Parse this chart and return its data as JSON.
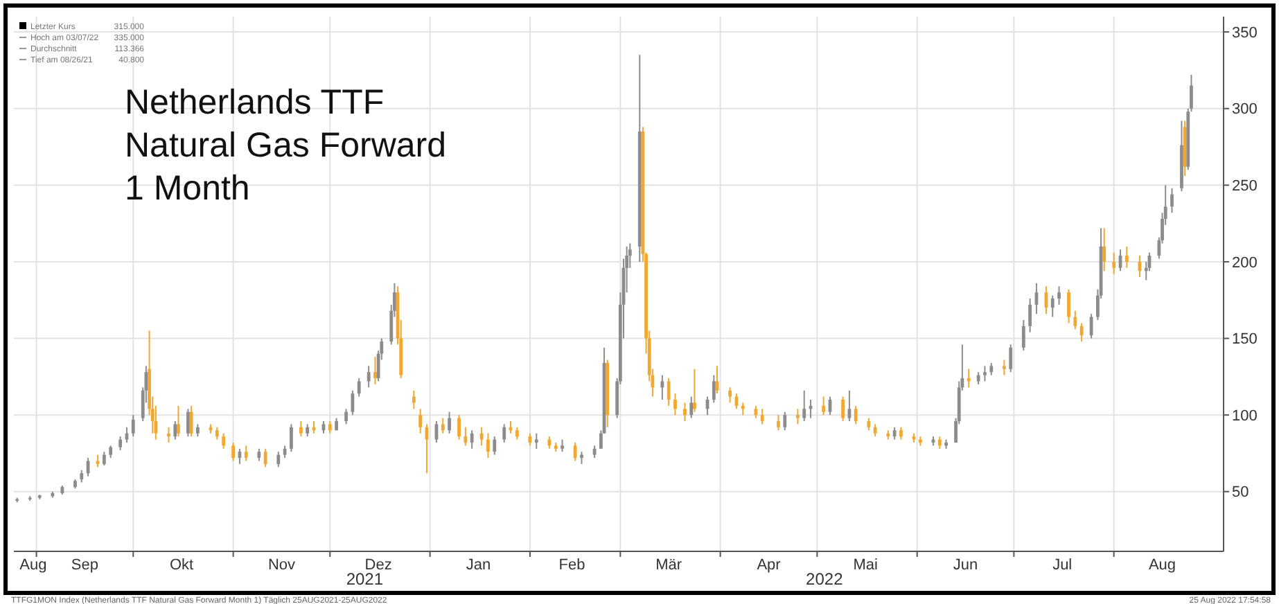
{
  "chart_data": {
    "type": "candlestick",
    "title": "Netherlands TTF\nNatural Gas Forward\n1 Month",
    "x": [
      "2021-08-26",
      "2021-08-30",
      "2021-09-02",
      "2021-09-06",
      "2021-09-09",
      "2021-09-13",
      "2021-09-15",
      "2021-09-17",
      "2021-09-20",
      "2021-09-22",
      "2021-09-24",
      "2021-09-27",
      "2021-09-29",
      "2021-10-01",
      "2021-10-04",
      "2021-10-05",
      "2021-10-06",
      "2021-10-07",
      "2021-10-08",
      "2021-10-12",
      "2021-10-14",
      "2021-10-15",
      "2021-10-18",
      "2021-10-19",
      "2021-10-21",
      "2021-10-25",
      "2021-10-27",
      "2021-10-29",
      "2021-11-01",
      "2021-11-03",
      "2021-11-05",
      "2021-11-09",
      "2021-11-11",
      "2021-11-15",
      "2021-11-17",
      "2021-11-19",
      "2021-11-22",
      "2021-11-24",
      "2021-11-26",
      "2021-11-29",
      "2021-12-01",
      "2021-12-03",
      "2021-12-06",
      "2021-12-08",
      "2021-12-10",
      "2021-12-13",
      "2021-12-15",
      "2021-12-16",
      "2021-12-17",
      "2021-12-20",
      "2021-12-21",
      "2021-12-22",
      "2021-12-23",
      "2021-12-27",
      "2021-12-29",
      "2021-12-31",
      "2022-01-03",
      "2022-01-05",
      "2022-01-07",
      "2022-01-10",
      "2022-01-12",
      "2022-01-14",
      "2022-01-17",
      "2022-01-19",
      "2022-01-21",
      "2022-01-24",
      "2022-01-26",
      "2022-01-28",
      "2022-02-01",
      "2022-02-03",
      "2022-02-07",
      "2022-02-09",
      "2022-02-11",
      "2022-02-15",
      "2022-02-17",
      "2022-02-21",
      "2022-02-23",
      "2022-02-24",
      "2022-02-25",
      "2022-02-28",
      "2022-03-01",
      "2022-03-02",
      "2022-03-03",
      "2022-03-04",
      "2022-03-07",
      "2022-03-08",
      "2022-03-09",
      "2022-03-10",
      "2022-03-11",
      "2022-03-14",
      "2022-03-16",
      "2022-03-18",
      "2022-03-21",
      "2022-03-23",
      "2022-03-24",
      "2022-03-28",
      "2022-03-30",
      "2022-03-31",
      "2022-04-04",
      "2022-04-06",
      "2022-04-08",
      "2022-04-12",
      "2022-04-14",
      "2022-04-19",
      "2022-04-21",
      "2022-04-25",
      "2022-04-27",
      "2022-04-29",
      "2022-05-03",
      "2022-05-05",
      "2022-05-09",
      "2022-05-11",
      "2022-05-13",
      "2022-05-17",
      "2022-05-19",
      "2022-05-23",
      "2022-05-25",
      "2022-05-27",
      "2022-05-31",
      "2022-06-02",
      "2022-06-06",
      "2022-06-08",
      "2022-06-10",
      "2022-06-13",
      "2022-06-14",
      "2022-06-15",
      "2022-06-17",
      "2022-06-20",
      "2022-06-22",
      "2022-06-24",
      "2022-06-28",
      "2022-06-30",
      "2022-07-04",
      "2022-07-06",
      "2022-07-08",
      "2022-07-11",
      "2022-07-13",
      "2022-07-15",
      "2022-07-18",
      "2022-07-20",
      "2022-07-22",
      "2022-07-25",
      "2022-07-27",
      "2022-07-28",
      "2022-07-29",
      "2022-08-01",
      "2022-08-03",
      "2022-08-05",
      "2022-08-09",
      "2022-08-11",
      "2022-08-12",
      "2022-08-15",
      "2022-08-16",
      "2022-08-17",
      "2022-08-19",
      "2022-08-22",
      "2022-08-23",
      "2022-08-24",
      "2022-08-25"
    ],
    "ohlc": [
      [
        44,
        46,
        43,
        45
      ],
      [
        45,
        47,
        44,
        46
      ],
      [
        46,
        48,
        45,
        47.5
      ],
      [
        47,
        50,
        46,
        49
      ],
      [
        49,
        54,
        48,
        53
      ],
      [
        53,
        58,
        52,
        57
      ],
      [
        58,
        64,
        56,
        62
      ],
      [
        62,
        72,
        60,
        70
      ],
      [
        70,
        74,
        66,
        68
      ],
      [
        68,
        76,
        67,
        74
      ],
      [
        74,
        80,
        72,
        79
      ],
      [
        79,
        86,
        77,
        84
      ],
      [
        84,
        92,
        82,
        88
      ],
      [
        88,
        100,
        86,
        97
      ],
      [
        98,
        118,
        96,
        116
      ],
      [
        116,
        132,
        108,
        128
      ],
      [
        130,
        155,
        100,
        104
      ],
      [
        104,
        112,
        88,
        96
      ],
      [
        96,
        106,
        84,
        88
      ],
      [
        88,
        92,
        82,
        86
      ],
      [
        86,
        96,
        84,
        94
      ],
      [
        94,
        106,
        86,
        88
      ],
      [
        88,
        104,
        86,
        102
      ],
      [
        102,
        106,
        86,
        88
      ],
      [
        88,
        94,
        86,
        92
      ],
      [
        92,
        94,
        88,
        90
      ],
      [
        90,
        92,
        84,
        86
      ],
      [
        86,
        88,
        78,
        80
      ],
      [
        80,
        82,
        70,
        72
      ],
      [
        72,
        78,
        68,
        76
      ],
      [
        76,
        80,
        70,
        72
      ],
      [
        72,
        78,
        70,
        76
      ],
      [
        76,
        78,
        66,
        68
      ],
      [
        68,
        76,
        66,
        74
      ],
      [
        74,
        80,
        72,
        78
      ],
      [
        78,
        94,
        76,
        92
      ],
      [
        92,
        96,
        86,
        88
      ],
      [
        88,
        94,
        86,
        92
      ],
      [
        92,
        96,
        88,
        90
      ],
      [
        90,
        96,
        88,
        94
      ],
      [
        94,
        96,
        88,
        90
      ],
      [
        90,
        98,
        90,
        96
      ],
      [
        96,
        104,
        94,
        102
      ],
      [
        102,
        116,
        100,
        114
      ],
      [
        114,
        124,
        112,
        122
      ],
      [
        122,
        132,
        118,
        128
      ],
      [
        128,
        138,
        120,
        124
      ],
      [
        124,
        142,
        122,
        140
      ],
      [
        140,
        150,
        136,
        148
      ],
      [
        148,
        172,
        146,
        168
      ],
      [
        168,
        186,
        164,
        180
      ],
      [
        180,
        184,
        146,
        150
      ],
      [
        150,
        162,
        124,
        126
      ],
      [
        112,
        116,
        104,
        108
      ],
      [
        100,
        104,
        88,
        92
      ],
      [
        92,
        94,
        62,
        84
      ],
      [
        84,
        96,
        82,
        94
      ],
      [
        94,
        98,
        88,
        90
      ],
      [
        90,
        102,
        88,
        98
      ],
      [
        98,
        100,
        84,
        86
      ],
      [
        86,
        92,
        80,
        82
      ],
      [
        82,
        90,
        78,
        88
      ],
      [
        88,
        92,
        80,
        84
      ],
      [
        84,
        88,
        72,
        76
      ],
      [
        76,
        86,
        74,
        84
      ],
      [
        84,
        94,
        82,
        92
      ],
      [
        92,
        96,
        88,
        90
      ],
      [
        90,
        92,
        84,
        86
      ],
      [
        86,
        88,
        80,
        82
      ],
      [
        82,
        88,
        78,
        84
      ],
      [
        84,
        86,
        78,
        80
      ],
      [
        80,
        82,
        76,
        78
      ],
      [
        78,
        84,
        76,
        80
      ],
      [
        80,
        82,
        70,
        72
      ],
      [
        72,
        76,
        68,
        74
      ],
      [
        74,
        80,
        72,
        78
      ],
      [
        78,
        90,
        78,
        88
      ],
      [
        88,
        144,
        88,
        134
      ],
      [
        134,
        136,
        92,
        100
      ],
      [
        100,
        124,
        98,
        122
      ],
      [
        122,
        180,
        120,
        172
      ],
      [
        172,
        202,
        150,
        196
      ],
      [
        196,
        210,
        180,
        204
      ],
      [
        204,
        212,
        196,
        208
      ],
      [
        210,
        335,
        200,
        285
      ],
      [
        285,
        288,
        200,
        205
      ],
      [
        205,
        206,
        140,
        150
      ],
      [
        150,
        155,
        122,
        126
      ],
      [
        126,
        130,
        112,
        118
      ],
      [
        118,
        126,
        110,
        122
      ],
      [
        122,
        124,
        106,
        110
      ],
      [
        110,
        114,
        100,
        104
      ],
      [
        104,
        108,
        96,
        100
      ],
      [
        100,
        112,
        98,
        108
      ],
      [
        108,
        130,
        102,
        104
      ],
      [
        104,
        112,
        100,
        110
      ],
      [
        110,
        126,
        108,
        122
      ],
      [
        122,
        132,
        114,
        116
      ],
      [
        116,
        118,
        108,
        112
      ],
      [
        112,
        114,
        104,
        106
      ],
      [
        106,
        108,
        100,
        104
      ],
      [
        104,
        106,
        98,
        100
      ],
      [
        100,
        104,
        94,
        96
      ],
      [
        96,
        100,
        90,
        92
      ],
      [
        92,
        102,
        90,
        100
      ],
      [
        100,
        104,
        94,
        98
      ],
      [
        98,
        116,
        96,
        104
      ],
      [
        104,
        110,
        98,
        106
      ],
      [
        106,
        112,
        100,
        102
      ],
      [
        102,
        112,
        100,
        110
      ],
      [
        110,
        112,
        96,
        98
      ],
      [
        98,
        116,
        96,
        104
      ],
      [
        104,
        106,
        94,
        96
      ],
      [
        96,
        98,
        90,
        92
      ],
      [
        92,
        94,
        86,
        88
      ],
      [
        88,
        90,
        84,
        86
      ],
      [
        86,
        92,
        84,
        90
      ],
      [
        90,
        92,
        84,
        86
      ],
      [
        86,
        88,
        82,
        84
      ],
      [
        84,
        86,
        80,
        82
      ],
      [
        82,
        86,
        80,
        84
      ],
      [
        84,
        86,
        78,
        80
      ],
      [
        80,
        84,
        78,
        82
      ],
      [
        82,
        98,
        82,
        96
      ],
      [
        96,
        122,
        94,
        118
      ],
      [
        118,
        146,
        116,
        124
      ],
      [
        124,
        130,
        118,
        122
      ],
      [
        122,
        128,
        120,
        126
      ],
      [
        126,
        132,
        122,
        128
      ],
      [
        128,
        134,
        126,
        132
      ],
      [
        132,
        136,
        126,
        130
      ],
      [
        130,
        146,
        128,
        144
      ],
      [
        144,
        162,
        142,
        158
      ],
      [
        158,
        176,
        154,
        172
      ],
      [
        172,
        186,
        166,
        180
      ],
      [
        180,
        184,
        166,
        170
      ],
      [
        170,
        178,
        164,
        176
      ],
      [
        176,
        184,
        172,
        180
      ],
      [
        180,
        182,
        160,
        164
      ],
      [
        164,
        168,
        156,
        158
      ],
      [
        158,
        160,
        148,
        152
      ],
      [
        152,
        166,
        150,
        164
      ],
      [
        164,
        182,
        162,
        178
      ],
      [
        178,
        222,
        176,
        210
      ],
      [
        210,
        222,
        194,
        200
      ],
      [
        200,
        206,
        192,
        196
      ],
      [
        196,
        208,
        194,
        204
      ],
      [
        204,
        210,
        196,
        200
      ],
      [
        200,
        204,
        190,
        194
      ],
      [
        194,
        200,
        188,
        196
      ],
      [
        196,
        206,
        194,
        204
      ],
      [
        204,
        216,
        202,
        214
      ],
      [
        214,
        232,
        212,
        228
      ],
      [
        228,
        250,
        224,
        236
      ],
      [
        236,
        248,
        232,
        244
      ],
      [
        248,
        292,
        246,
        276
      ],
      [
        288,
        292,
        256,
        262
      ],
      [
        262,
        300,
        260,
        298
      ],
      [
        300,
        322,
        298,
        315
      ]
    ],
    "colors": [
      "#8c8c8c",
      "#8c8c8c",
      "#8c8c8c",
      "#8c8c8c",
      "#8c8c8c",
      "#8c8c8c",
      "#8c8c8c",
      "#8c8c8c",
      "#f0a830",
      "#8c8c8c",
      "#8c8c8c",
      "#8c8c8c",
      "#8c8c8c",
      "#8c8c8c",
      "#8c8c8c",
      "#8c8c8c",
      "#f0a830",
      "#f0a830",
      "#f0a830",
      "#f0a830",
      "#8c8c8c",
      "#f0a830",
      "#8c8c8c",
      "#f0a830",
      "#8c8c8c",
      "#f0a830",
      "#f0a830",
      "#f0a830",
      "#f0a830",
      "#8c8c8c",
      "#f0a830",
      "#8c8c8c",
      "#f0a830",
      "#8c8c8c",
      "#8c8c8c",
      "#8c8c8c",
      "#f0a830",
      "#8c8c8c",
      "#f0a830",
      "#8c8c8c",
      "#f0a830",
      "#8c8c8c",
      "#8c8c8c",
      "#8c8c8c",
      "#8c8c8c",
      "#8c8c8c",
      "#f0a830",
      "#8c8c8c",
      "#8c8c8c",
      "#8c8c8c",
      "#8c8c8c",
      "#f0a830",
      "#f0a830",
      "#f0a830",
      "#f0a830",
      "#f0a830",
      "#8c8c8c",
      "#f0a830",
      "#8c8c8c",
      "#f0a830",
      "#f0a830",
      "#8c8c8c",
      "#f0a830",
      "#f0a830",
      "#8c8c8c",
      "#8c8c8c",
      "#f0a830",
      "#f0a830",
      "#f0a830",
      "#8c8c8c",
      "#f0a830",
      "#f0a830",
      "#8c8c8c",
      "#f0a830",
      "#8c8c8c",
      "#8c8c8c",
      "#8c8c8c",
      "#8c8c8c",
      "#f0a830",
      "#8c8c8c",
      "#8c8c8c",
      "#8c8c8c",
      "#8c8c8c",
      "#8c8c8c",
      "#8c8c8c",
      "#f0a830",
      "#f0a830",
      "#f0a830",
      "#f0a830",
      "#8c8c8c",
      "#f0a830",
      "#f0a830",
      "#f0a830",
      "#8c8c8c",
      "#f0a830",
      "#8c8c8c",
      "#8c8c8c",
      "#f0a830",
      "#f0a830",
      "#f0a830",
      "#f0a830",
      "#f0a830",
      "#f0a830",
      "#f0a830",
      "#8c8c8c",
      "#f0a830",
      "#8c8c8c",
      "#8c8c8c",
      "#f0a830",
      "#8c8c8c",
      "#f0a830",
      "#8c8c8c",
      "#f0a830",
      "#f0a830",
      "#f0a830",
      "#f0a830",
      "#8c8c8c",
      "#f0a830",
      "#f0a830",
      "#f0a830",
      "#8c8c8c",
      "#f0a830",
      "#8c8c8c",
      "#8c8c8c",
      "#8c8c8c",
      "#8c8c8c",
      "#f0a830",
      "#8c8c8c",
      "#8c8c8c",
      "#8c8c8c",
      "#f0a830",
      "#8c8c8c",
      "#8c8c8c",
      "#8c8c8c",
      "#8c8c8c",
      "#f0a830",
      "#8c8c8c",
      "#8c8c8c",
      "#f0a830",
      "#f0a830",
      "#f0a830",
      "#8c8c8c",
      "#8c8c8c",
      "#8c8c8c",
      "#f0a830",
      "#f0a830",
      "#8c8c8c",
      "#f0a830",
      "#f0a830",
      "#8c8c8c",
      "#8c8c8c",
      "#8c8c8c",
      "#8c8c8c",
      "#8c8c8c",
      "#8c8c8c",
      "#8c8c8c",
      "#f0a830",
      "#8c8c8c",
      "#8c8c8c"
    ],
    "xlim": [
      "2021-08-25",
      "2022-09-04"
    ],
    "xticks": [
      {
        "value": "2021-09-01",
        "label": null
      },
      {
        "value": "2021-10-01",
        "label": null
      },
      {
        "value": "2021-11-01",
        "label": null
      },
      {
        "value": "2021-12-01",
        "label": null
      },
      {
        "value": "2022-01-01",
        "label": null
      },
      {
        "value": "2022-02-01",
        "label": null
      },
      {
        "value": "2022-03-01",
        "label": null
      },
      {
        "value": "2022-04-01",
        "label": null
      },
      {
        "value": "2022-05-01",
        "label": null
      },
      {
        "value": "2022-06-01",
        "label": null
      },
      {
        "value": "2022-07-01",
        "label": null
      },
      {
        "value": "2022-08-01",
        "label": null
      },
      {
        "value": "2021-08-31",
        "label": "Aug"
      },
      {
        "value": "2021-09-16",
        "label": "Sep"
      },
      {
        "value": "2021-10-16",
        "label": "Okt"
      },
      {
        "value": "2021-11-16",
        "label": "Nov"
      },
      {
        "value": "2021-12-16",
        "label": "Dez"
      },
      {
        "value": "2022-01-16",
        "label": "Jan"
      },
      {
        "value": "2022-02-14",
        "label": "Feb"
      },
      {
        "value": "2022-03-16",
        "label": "Mär"
      },
      {
        "value": "2022-04-16",
        "label": "Apr"
      },
      {
        "value": "2022-05-16",
        "label": "Mai"
      },
      {
        "value": "2022-06-16",
        "label": "Jun"
      },
      {
        "value": "2022-07-16",
        "label": "Jul"
      },
      {
        "value": "2022-08-16",
        "label": "Aug"
      }
    ],
    "ylim": [
      11,
      360
    ],
    "yticks": [
      50,
      100,
      150,
      200,
      250,
      300,
      350
    ],
    "grid": true,
    "annotations": [
      "Letzter Kurs 315.000",
      "Hoch am 03/07/22 335.000",
      "Durchschnitt 113.366",
      "Tief am 08/26/21 40.800",
      "2021",
      "2022",
      "TTFG1MON Index (Netherlands TTF Natural Gas Forward Month 1) Täglich 25AUG2021-25AUG2022",
      "25 Aug 2022 17:54:58"
    ]
  }
}
